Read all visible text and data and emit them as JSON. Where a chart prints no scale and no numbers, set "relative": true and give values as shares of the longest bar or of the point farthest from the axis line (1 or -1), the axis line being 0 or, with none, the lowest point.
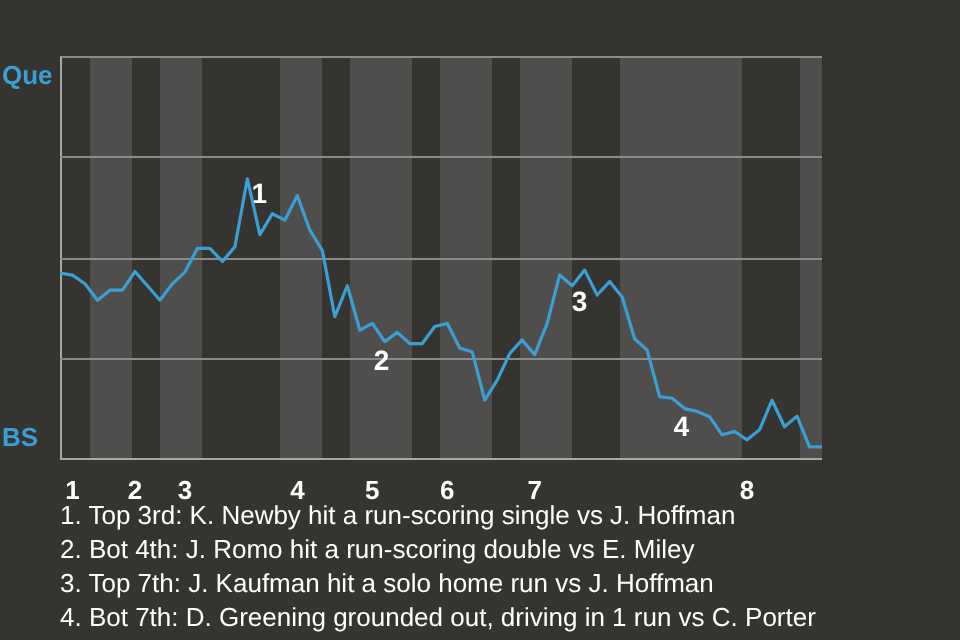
{
  "chart_data": {
    "type": "line",
    "relative": true,
    "categories": [
      null,
      "1",
      null,
      null,
      null,
      null,
      "2",
      null,
      null,
      null,
      "3",
      null,
      null,
      null,
      null,
      null,
      null,
      null,
      null,
      "4",
      null,
      null,
      null,
      null,
      null,
      "5",
      null,
      null,
      null,
      null,
      null,
      "6",
      null,
      null,
      null,
      null,
      null,
      null,
      "7",
      null,
      null,
      null,
      null,
      null,
      null,
      null,
      null,
      null,
      null,
      null,
      null,
      null,
      null,
      null,
      null,
      "8",
      null,
      null,
      null,
      null,
      null,
      null
    ],
    "series": [
      {
        "color": "#3a9fd4",
        "values": [
          0.662,
          0.655,
          0.624,
          0.565,
          0.601,
          0.601,
          0.668,
          0.617,
          0.565,
          0.624,
          0.666,
          0.751,
          0.751,
          0.704,
          0.757,
          1,
          0.8,
          0.875,
          0.852,
          0.94,
          0.816,
          0.744,
          0.506,
          0.617,
          0.458,
          0.482,
          0.417,
          0.45,
          0.41,
          0.41,
          0.471,
          0.482,
          0.394,
          0.38,
          0.207,
          0.279,
          0.374,
          0.423,
          0.37,
          0.482,
          0.656,
          0.617,
          0.673,
          0.584,
          0.632,
          0.577,
          0.427,
          0.387,
          0.22,
          0.214,
          0.177,
          0.167,
          0.148,
          0.083,
          0.095,
          0.065,
          0.101,
          0.207,
          0.112,
          0.15,
          0.04,
          0.04
        ]
      }
    ],
    "ref_lines": [
      {
        "axis": "y",
        "value": 0.36,
        "color": "#8a8a88"
      },
      {
        "axis": "y",
        "value": 0.72,
        "color": "#8a8a88"
      },
      {
        "axis": "y",
        "value": 1.08,
        "color": "#8a8a88"
      }
    ],
    "legend": false,
    "marker": "none",
    "line_style": "solid",
    "annotations": [
      "Que",
      "BS",
      {
        "text": "1",
        "y": 1
      },
      {
        "text": "2",
        "y": 0.458
      },
      {
        "text": "3",
        "y": 0.656
      },
      {
        "text": "4",
        "y": 0.22
      },
      "1. Top 3rd: K. Newby hit a run-scoring single vs J. Hoffman",
      "2. Bot 4th: J. Romo hit a run-scoring double vs E. Miley",
      "3. Top 7th: J. Kaufman hit a solo home run vs J. Hoffman",
      "4. Bot 7th: D. Greening grounded out, driving in 1 run vs C. Porter"
    ]
  }
}
